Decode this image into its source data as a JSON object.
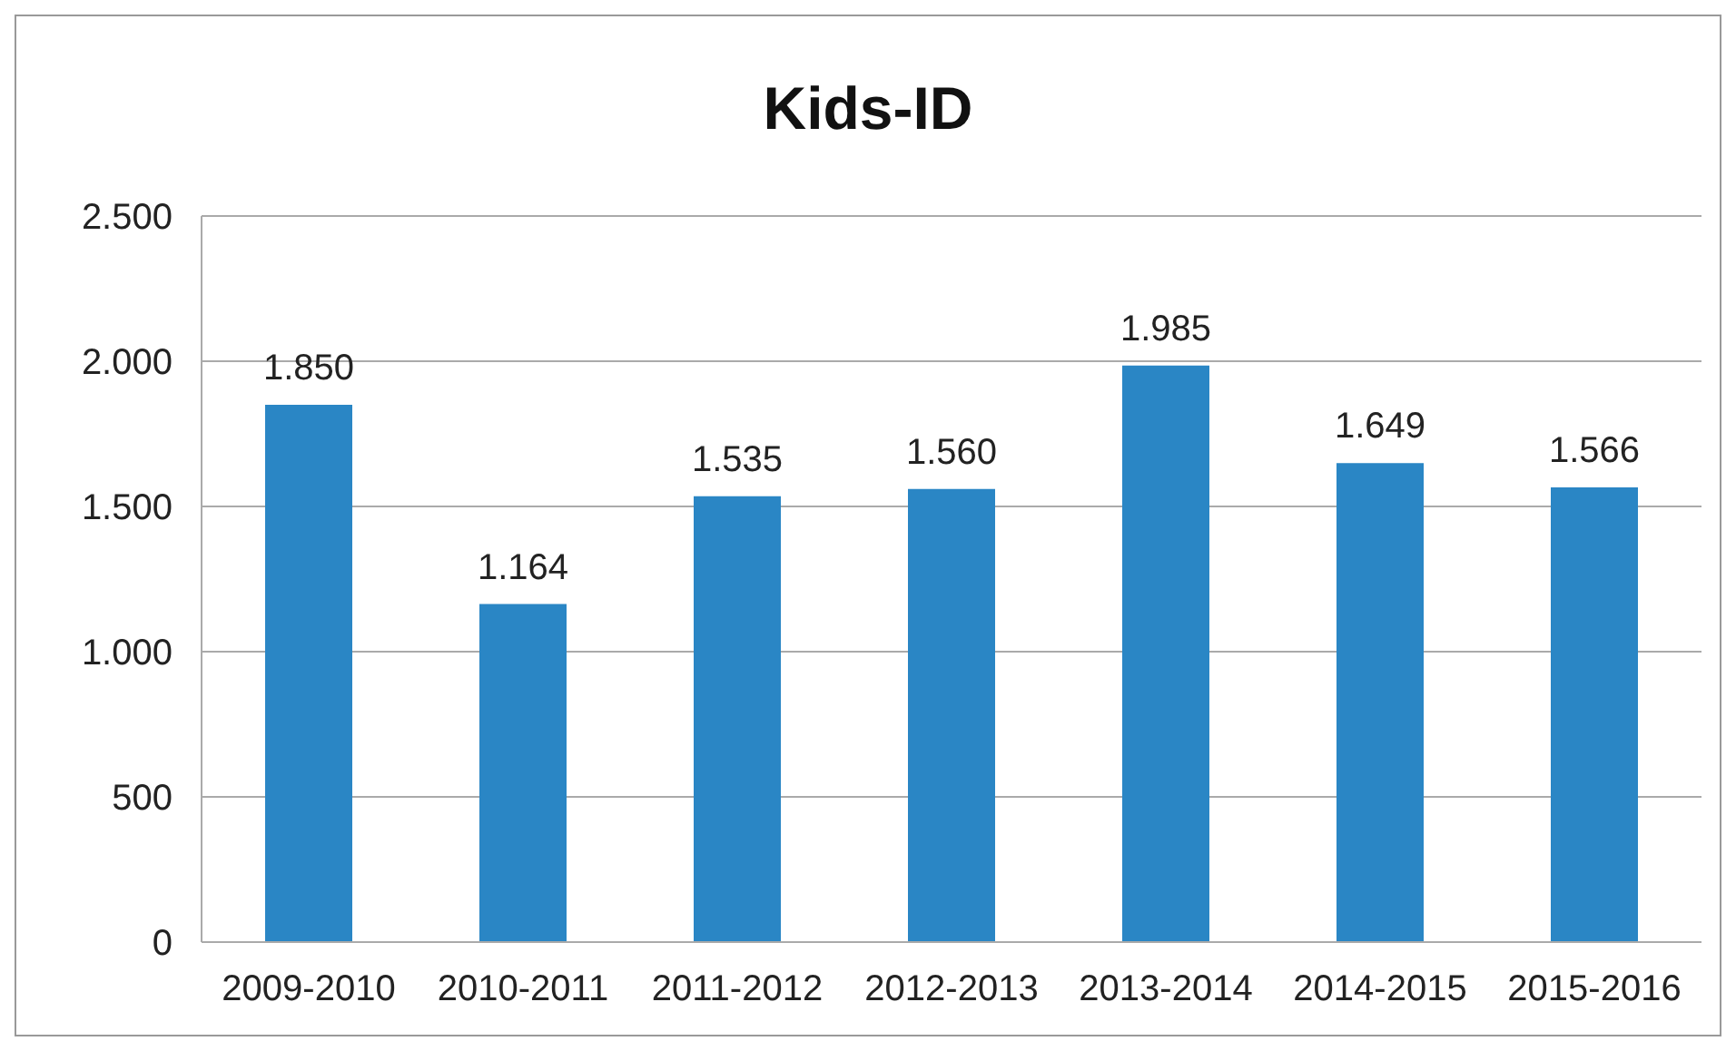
{
  "chart_data": {
    "type": "bar",
    "title": "Kids-ID",
    "categories": [
      "2009-2010",
      "2010-2011",
      "2011-2012",
      "2012-2013",
      "2013-2014",
      "2014-2015",
      "2015-2016"
    ],
    "values": [
      1850,
      1164,
      1535,
      1560,
      1985,
      1649,
      1566
    ],
    "value_labels": [
      "1.850",
      "1.164",
      "1.535",
      "1.560",
      "1.985",
      "1.649",
      "1.566"
    ],
    "color": "#2a86c5",
    "ylim": [
      0,
      2500
    ],
    "yticks": [
      0,
      500,
      {
        "value": 1000,
        "label": "1.000"
      },
      {
        "value": 1500,
        "label": "1.500"
      },
      {
        "value": 2000,
        "label": "2.000"
      },
      {
        "value": 2500,
        "label": "2.500"
      }
    ],
    "grid": "y",
    "legend": false
  }
}
